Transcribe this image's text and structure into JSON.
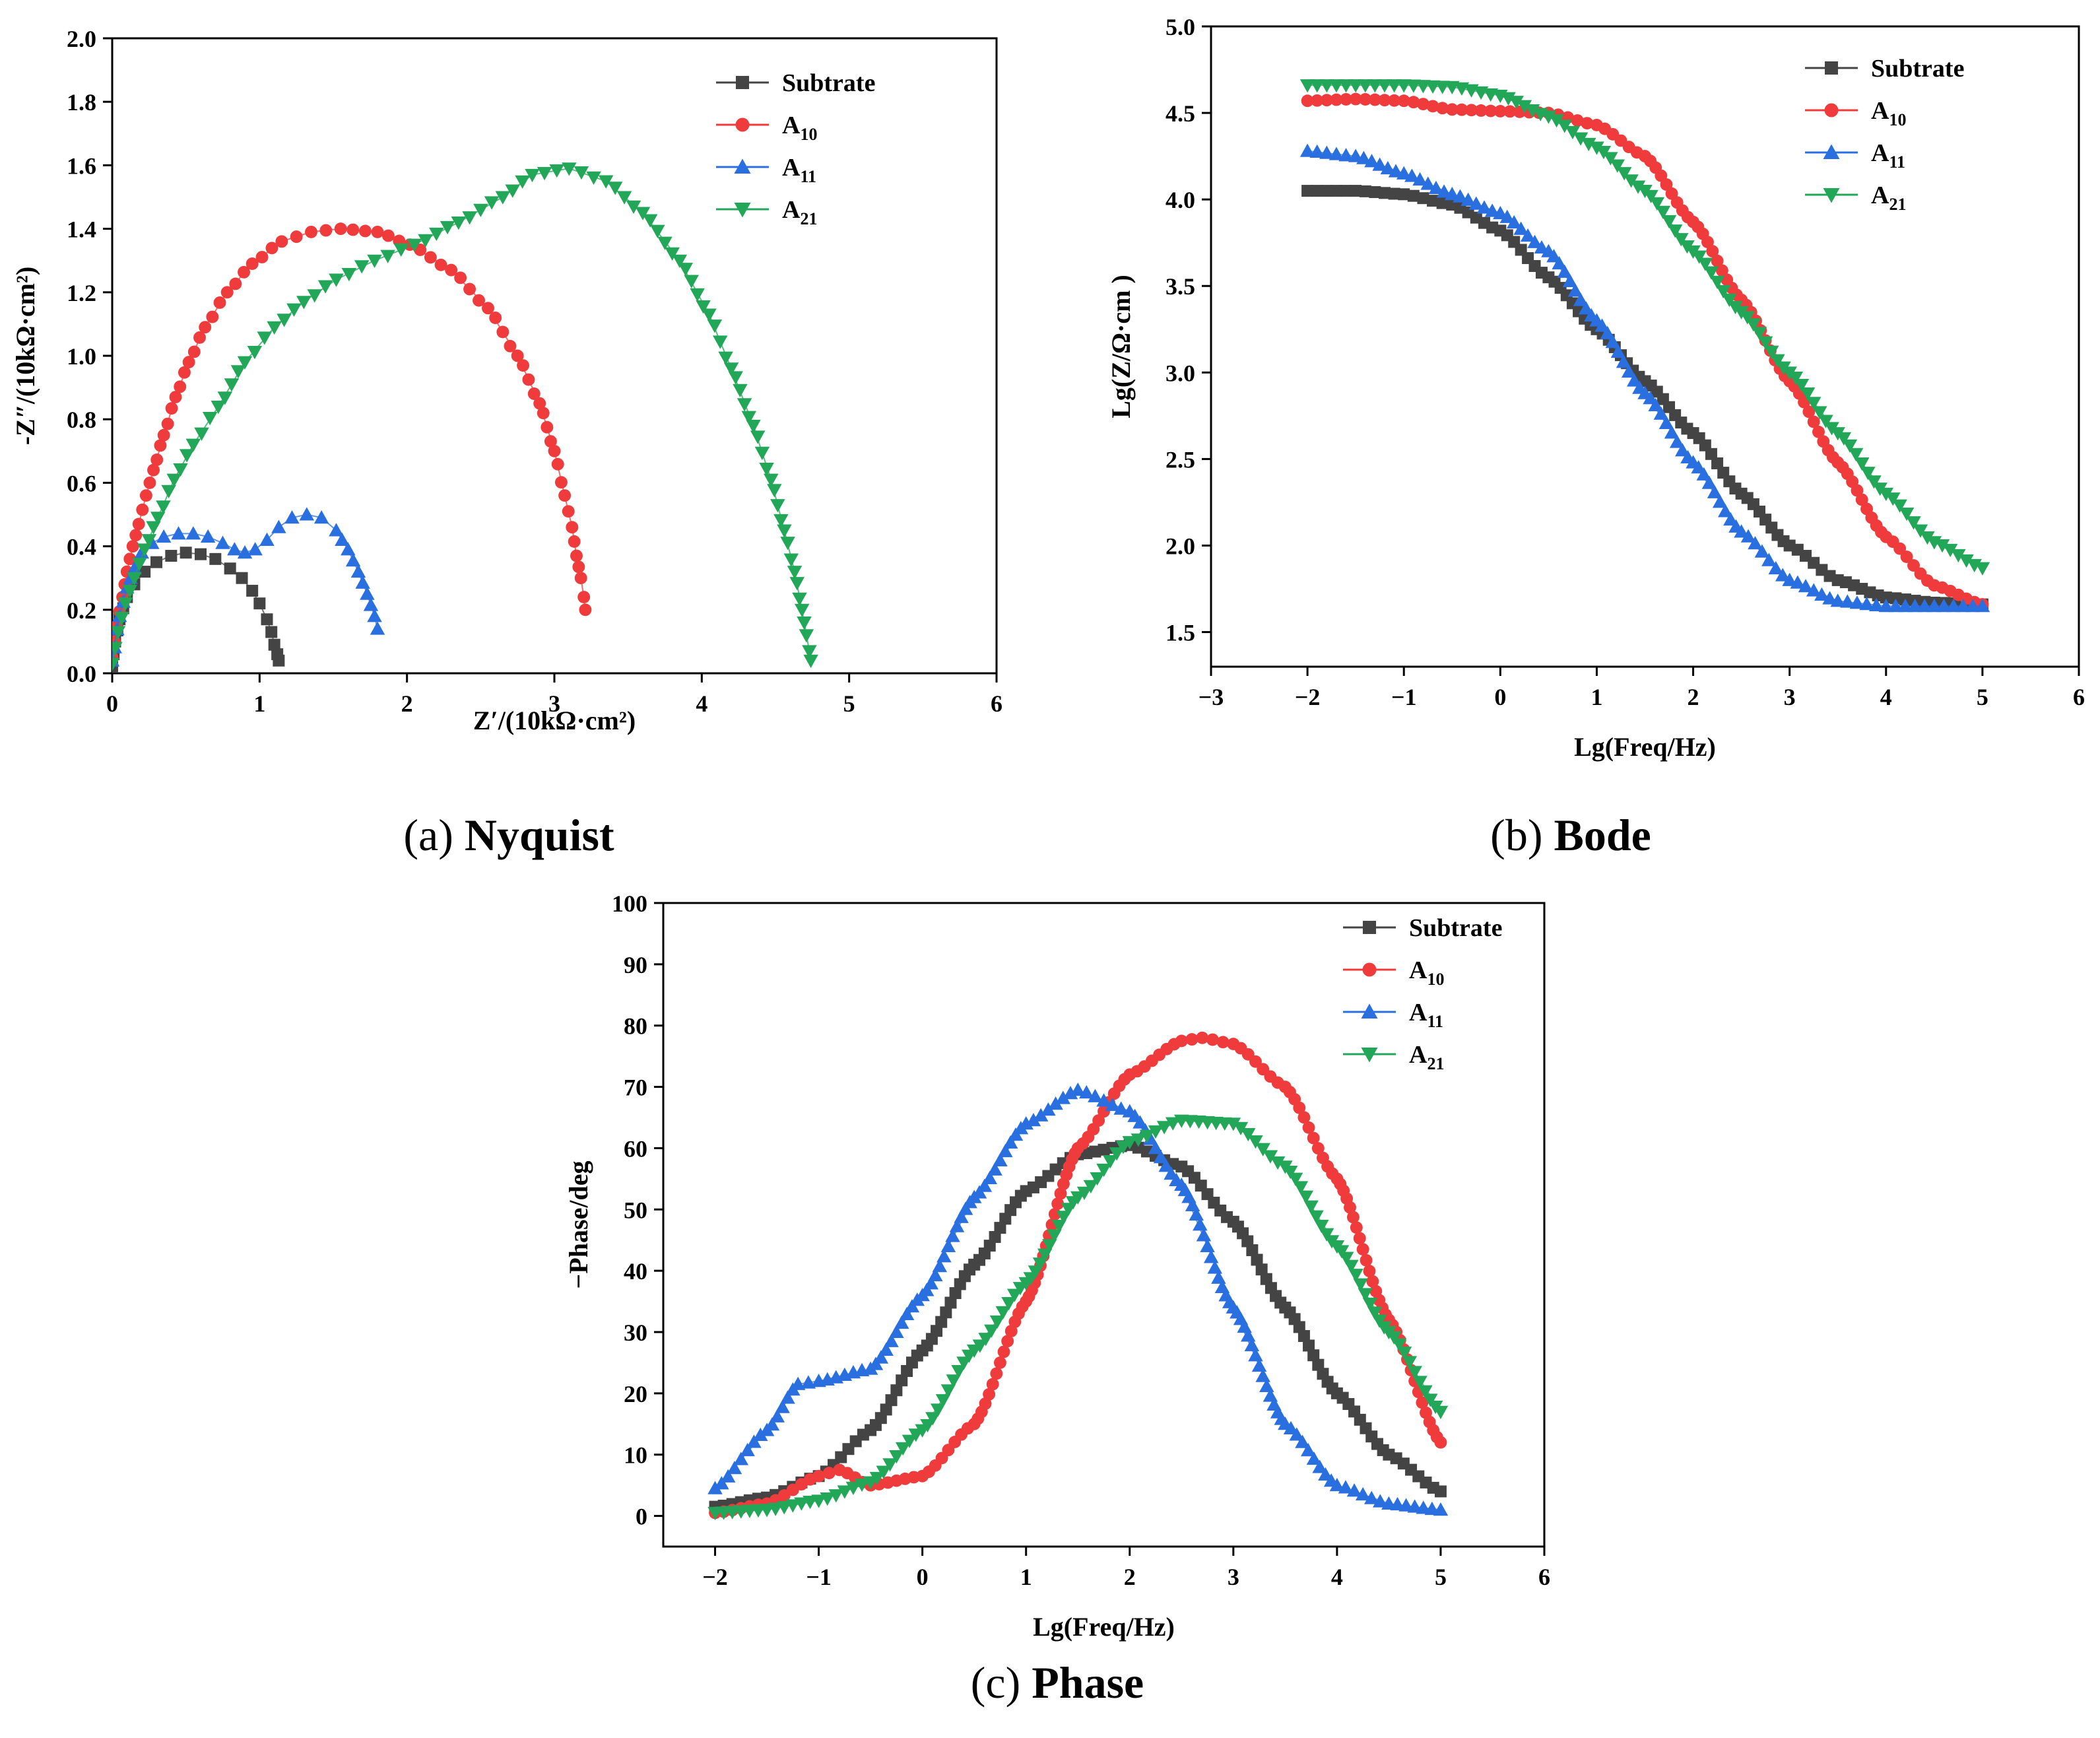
{
  "colors": {
    "Subtrate": "#444444",
    "A10": "#ef3b3b",
    "A11": "#2a6fe0",
    "A21": "#22a657"
  },
  "chart_data": [
    {
      "id": "nyquist",
      "type": "scatter",
      "caption": {
        "label": "(a)",
        "title": "Nyquist"
      },
      "xlabel": "Z′/(10kΩ·cm²)",
      "ylabel": "-Z″/(10kΩ·cm²)",
      "xlim": [
        0,
        6
      ],
      "ylim": [
        0,
        2.0
      ],
      "xticks": [
        "0",
        "1",
        "2",
        "3",
        "4",
        "5",
        "6"
      ],
      "yticks": [
        "0.0",
        "0.2",
        "0.4",
        "0.6",
        "0.8",
        "1.0",
        "1.2",
        "1.4",
        "1.6",
        "1.8",
        "2.0"
      ],
      "legend_position": "top-right",
      "series": [
        {
          "key": "Subtrate",
          "name": "Subtrate",
          "sub": "",
          "marker": "square",
          "x": [
            0.0,
            0.02,
            0.05,
            0.1,
            0.15,
            0.22,
            0.3,
            0.4,
            0.5,
            0.6,
            0.7,
            0.8,
            0.88,
            0.95,
            1.0,
            1.05,
            1.08,
            1.1,
            1.12,
            1.13
          ],
          "y": [
            0.02,
            0.1,
            0.17,
            0.24,
            0.28,
            0.32,
            0.35,
            0.37,
            0.38,
            0.375,
            0.36,
            0.33,
            0.3,
            0.26,
            0.22,
            0.17,
            0.13,
            0.09,
            0.06,
            0.04
          ]
        },
        {
          "key": "A10",
          "name": "A",
          "sub": "10",
          "marker": "circle",
          "x": [
            0.0,
            0.03,
            0.07,
            0.1,
            0.14,
            0.18,
            0.23,
            0.28,
            0.35,
            0.43,
            0.52,
            0.63,
            0.78,
            0.95,
            1.15,
            1.35,
            1.55,
            1.8,
            2.02,
            2.3,
            2.55,
            2.75,
            2.9,
            3.0,
            3.07,
            3.12,
            3.15,
            3.18,
            3.2,
            3.21
          ],
          "y": [
            0.05,
            0.15,
            0.24,
            0.32,
            0.4,
            0.47,
            0.56,
            0.64,
            0.75,
            0.87,
            0.98,
            1.09,
            1.2,
            1.29,
            1.36,
            1.39,
            1.4,
            1.39,
            1.35,
            1.27,
            1.15,
            1.0,
            0.85,
            0.7,
            0.56,
            0.46,
            0.37,
            0.3,
            0.24,
            0.2
          ]
        },
        {
          "key": "A11",
          "name": "A",
          "sub": "11",
          "marker": "triangle-up",
          "x": [
            0.0,
            0.05,
            0.1,
            0.15,
            0.2,
            0.27,
            0.35,
            0.45,
            0.55,
            0.65,
            0.75,
            0.83,
            0.9,
            0.97,
            1.05,
            1.13,
            1.22,
            1.32,
            1.42,
            1.52,
            1.6,
            1.67,
            1.73,
            1.78,
            1.8
          ],
          "y": [
            0.04,
            0.18,
            0.27,
            0.33,
            0.38,
            0.41,
            0.43,
            0.44,
            0.44,
            0.43,
            0.41,
            0.39,
            0.38,
            0.39,
            0.42,
            0.46,
            0.49,
            0.5,
            0.49,
            0.45,
            0.39,
            0.32,
            0.25,
            0.18,
            0.14
          ]
        },
        {
          "key": "A21",
          "name": "A",
          "sub": "21",
          "marker": "triangle-down",
          "x": [
            0.0,
            0.04,
            0.09,
            0.15,
            0.22,
            0.31,
            0.42,
            0.55,
            0.72,
            0.9,
            1.1,
            1.3,
            1.52,
            1.78,
            2.05,
            2.35,
            2.65,
            2.85,
            3.1,
            3.35,
            3.6,
            3.85,
            4.05,
            4.2,
            4.35,
            4.47,
            4.56,
            4.63,
            4.68,
            4.71,
            4.73,
            4.74
          ],
          "y": [
            0.03,
            0.13,
            0.22,
            0.3,
            0.39,
            0.49,
            0.61,
            0.72,
            0.84,
            0.98,
            1.09,
            1.17,
            1.24,
            1.3,
            1.35,
            1.42,
            1.5,
            1.57,
            1.59,
            1.55,
            1.45,
            1.3,
            1.13,
            0.96,
            0.78,
            0.61,
            0.45,
            0.32,
            0.2,
            0.12,
            0.07,
            0.04
          ]
        }
      ]
    },
    {
      "id": "bode",
      "type": "scatter",
      "caption": {
        "label": "(b)",
        "title": "Bode"
      },
      "xlabel": "Lg(Freq/Hz)",
      "ylabel": "Lg(Z/Ω·cm )",
      "xlim": [
        -3,
        6
      ],
      "ylim": [
        1.3,
        5.0
      ],
      "xticks": [
        "−3",
        "−2",
        "−1",
        "0",
        "1",
        "2",
        "3",
        "4",
        "5",
        "6"
      ],
      "yticks": [
        "1.5",
        "2.0",
        "2.5",
        "3.0",
        "3.5",
        "4.0",
        "4.5",
        "5.0"
      ],
      "legend_position": "top-right",
      "series": [
        {
          "key": "Subtrate",
          "name": "Subtrate",
          "sub": "",
          "marker": "square",
          "x": [
            -2.0,
            -1.5,
            -1.0,
            -0.5,
            0.0,
            0.5,
            1.0,
            1.5,
            2.0,
            2.5,
            3.0,
            3.5,
            4.0,
            4.5,
            5.0
          ],
          "y": [
            4.05,
            4.05,
            4.03,
            3.97,
            3.82,
            3.55,
            3.25,
            2.95,
            2.65,
            2.3,
            2.0,
            1.8,
            1.7,
            1.67,
            1.66
          ]
        },
        {
          "key": "A10",
          "name": "A",
          "sub": "10",
          "marker": "circle",
          "x": [
            -2.0,
            -1.5,
            -1.0,
            -0.5,
            0.0,
            0.5,
            1.0,
            1.5,
            2.0,
            2.5,
            3.0,
            3.5,
            4.0,
            4.5,
            5.0
          ],
          "y": [
            4.57,
            4.58,
            4.57,
            4.52,
            4.51,
            4.5,
            4.43,
            4.25,
            3.87,
            3.42,
            2.95,
            2.48,
            2.05,
            1.77,
            1.66
          ]
        },
        {
          "key": "A11",
          "name": "A",
          "sub": "11",
          "marker": "triangle-up",
          "x": [
            -2.0,
            -1.5,
            -1.0,
            -0.5,
            0.0,
            0.5,
            1.0,
            1.5,
            2.0,
            2.5,
            3.0,
            3.5,
            4.0,
            4.5,
            5.0
          ],
          "y": [
            4.28,
            4.25,
            4.15,
            4.03,
            3.92,
            3.7,
            3.3,
            2.88,
            2.48,
            2.08,
            1.8,
            1.68,
            1.65,
            1.65,
            1.65
          ]
        },
        {
          "key": "A21",
          "name": "A",
          "sub": "21",
          "marker": "triangle-down",
          "x": [
            -2.0,
            -1.5,
            -1.0,
            -0.5,
            0.0,
            0.5,
            1.0,
            1.5,
            2.0,
            2.5,
            3.0,
            3.5,
            4.0,
            4.5,
            5.0
          ],
          "y": [
            4.66,
            4.66,
            4.66,
            4.65,
            4.6,
            4.48,
            4.3,
            4.05,
            3.7,
            3.35,
            3.0,
            2.65,
            2.3,
            2.02,
            1.87
          ]
        }
      ]
    },
    {
      "id": "phase",
      "type": "scatter",
      "caption": {
        "label": "(c)",
        "title": "Phase"
      },
      "xlabel": "Lg(Freq/Hz)",
      "ylabel": "−Phase/deg",
      "xlim": [
        -2.5,
        6
      ],
      "ylim": [
        -5,
        100
      ],
      "xticks": [
        "−2",
        "−1",
        "0",
        "1",
        "2",
        "3",
        "4",
        "5",
        "6"
      ],
      "yticks": [
        "0",
        "10",
        "20",
        "30",
        "40",
        "50",
        "60",
        "70",
        "80",
        "90",
        "100"
      ],
      "legend_position": "top-right",
      "series": [
        {
          "key": "Subtrate",
          "name": "Subtrate",
          "sub": "",
          "marker": "square",
          "x": [
            -2.0,
            -1.5,
            -1.0,
            -0.5,
            0.0,
            0.5,
            1.0,
            1.5,
            2.0,
            2.5,
            3.0,
            3.5,
            4.0,
            4.5,
            5.0
          ],
          "y": [
            1.5,
            3.0,
            6.5,
            14.0,
            27.0,
            41.0,
            53.0,
            59.0,
            60.5,
            57.0,
            48.0,
            34.0,
            20.0,
            10.0,
            4.0
          ]
        },
        {
          "key": "A10",
          "name": "A",
          "sub": "10",
          "marker": "circle",
          "x": [
            -2.0,
            -1.5,
            -1.0,
            -0.8,
            -0.5,
            0.0,
            0.5,
            1.0,
            1.5,
            2.0,
            2.5,
            2.7,
            3.0,
            3.5,
            4.0,
            4.5,
            5.0
          ],
          "y": [
            0.5,
            2.0,
            6.5,
            7.5,
            5.0,
            6.5,
            15.0,
            35.0,
            60.0,
            72.0,
            77.5,
            78.0,
            77.0,
            70.0,
            55.0,
            32.0,
            12.0
          ]
        },
        {
          "key": "A11",
          "name": "A",
          "sub": "11",
          "marker": "triangle-up",
          "x": [
            -2.0,
            -1.5,
            -1.2,
            -1.0,
            -0.5,
            0.0,
            0.5,
            1.0,
            1.5,
            2.0,
            2.5,
            3.0,
            3.5,
            4.0,
            4.5,
            5.0
          ],
          "y": [
            4.5,
            14.0,
            21.5,
            22.0,
            24.0,
            36.0,
            52.0,
            64.0,
            69.5,
            66.0,
            54.0,
            34.0,
            15.0,
            5.0,
            2.0,
            1.0
          ]
        },
        {
          "key": "A21",
          "name": "A",
          "sub": "21",
          "marker": "triangle-down",
          "x": [
            -2.0,
            -1.5,
            -1.0,
            -0.5,
            0.0,
            0.5,
            1.0,
            1.5,
            2.0,
            2.5,
            3.0,
            3.5,
            4.0,
            4.5,
            5.0
          ],
          "y": [
            0.5,
            1.0,
            2.5,
            5.5,
            14.0,
            27.0,
            38.0,
            52.0,
            61.0,
            64.5,
            64.0,
            57.0,
            44.0,
            30.0,
            17.0
          ]
        }
      ]
    }
  ]
}
